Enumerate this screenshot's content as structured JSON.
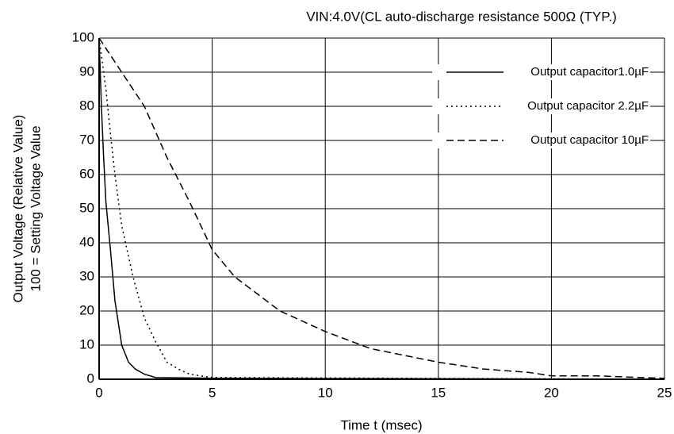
{
  "chart_data": {
    "type": "line",
    "title": "VIN:4.0V(CL auto-discharge resistance 500Ω (TYP.)",
    "xlabel": "Time   t   (msec)",
    "ylabel": [
      "Output Voltage (Relative Value)",
      "100 = Setting Voltage Value"
    ],
    "xlim": [
      0,
      25
    ],
    "xticks": [
      0,
      5,
      10,
      15,
      20,
      25
    ],
    "ylim": [
      0,
      100
    ],
    "yticks": [
      0,
      10,
      20,
      30,
      40,
      50,
      60,
      70,
      80,
      90,
      100
    ],
    "grid": true,
    "legend": "upper right",
    "series": [
      {
        "name": "Output capacitor1.0µF",
        "color": "#000000",
        "dash": "solid",
        "x": [
          0,
          0.1,
          0.2,
          0.3,
          0.5,
          0.7,
          1,
          1.3,
          1.6,
          2,
          2.5,
          5,
          25
        ],
        "values": [
          100,
          80,
          65,
          52,
          38,
          23,
          10,
          5,
          3,
          1.5,
          0.5,
          0.3,
          0
        ]
      },
      {
        "name": "Output capacitor 2.2µF",
        "color": "#000000",
        "dash": "dotted",
        "x": [
          0,
          0.3,
          0.5,
          0.7,
          1,
          1.5,
          2,
          2.5,
          3,
          3.5,
          4,
          5,
          25
        ],
        "values": [
          100,
          85,
          72,
          60,
          45,
          30,
          18,
          11,
          5,
          3,
          1.5,
          0.5,
          0
        ]
      },
      {
        "name": "Output capacitor 10µF",
        "color": "#000000",
        "dash": "dashed",
        "x": [
          0,
          1,
          2,
          3,
          4,
          5,
          6,
          7,
          8,
          10,
          12,
          15,
          17,
          19,
          20,
          22,
          24,
          25
        ],
        "values": [
          100,
          90,
          80,
          65,
          52,
          38,
          30,
          25,
          20,
          14,
          9,
          5,
          3,
          2,
          1,
          1,
          0.5,
          0.3
        ]
      }
    ]
  }
}
